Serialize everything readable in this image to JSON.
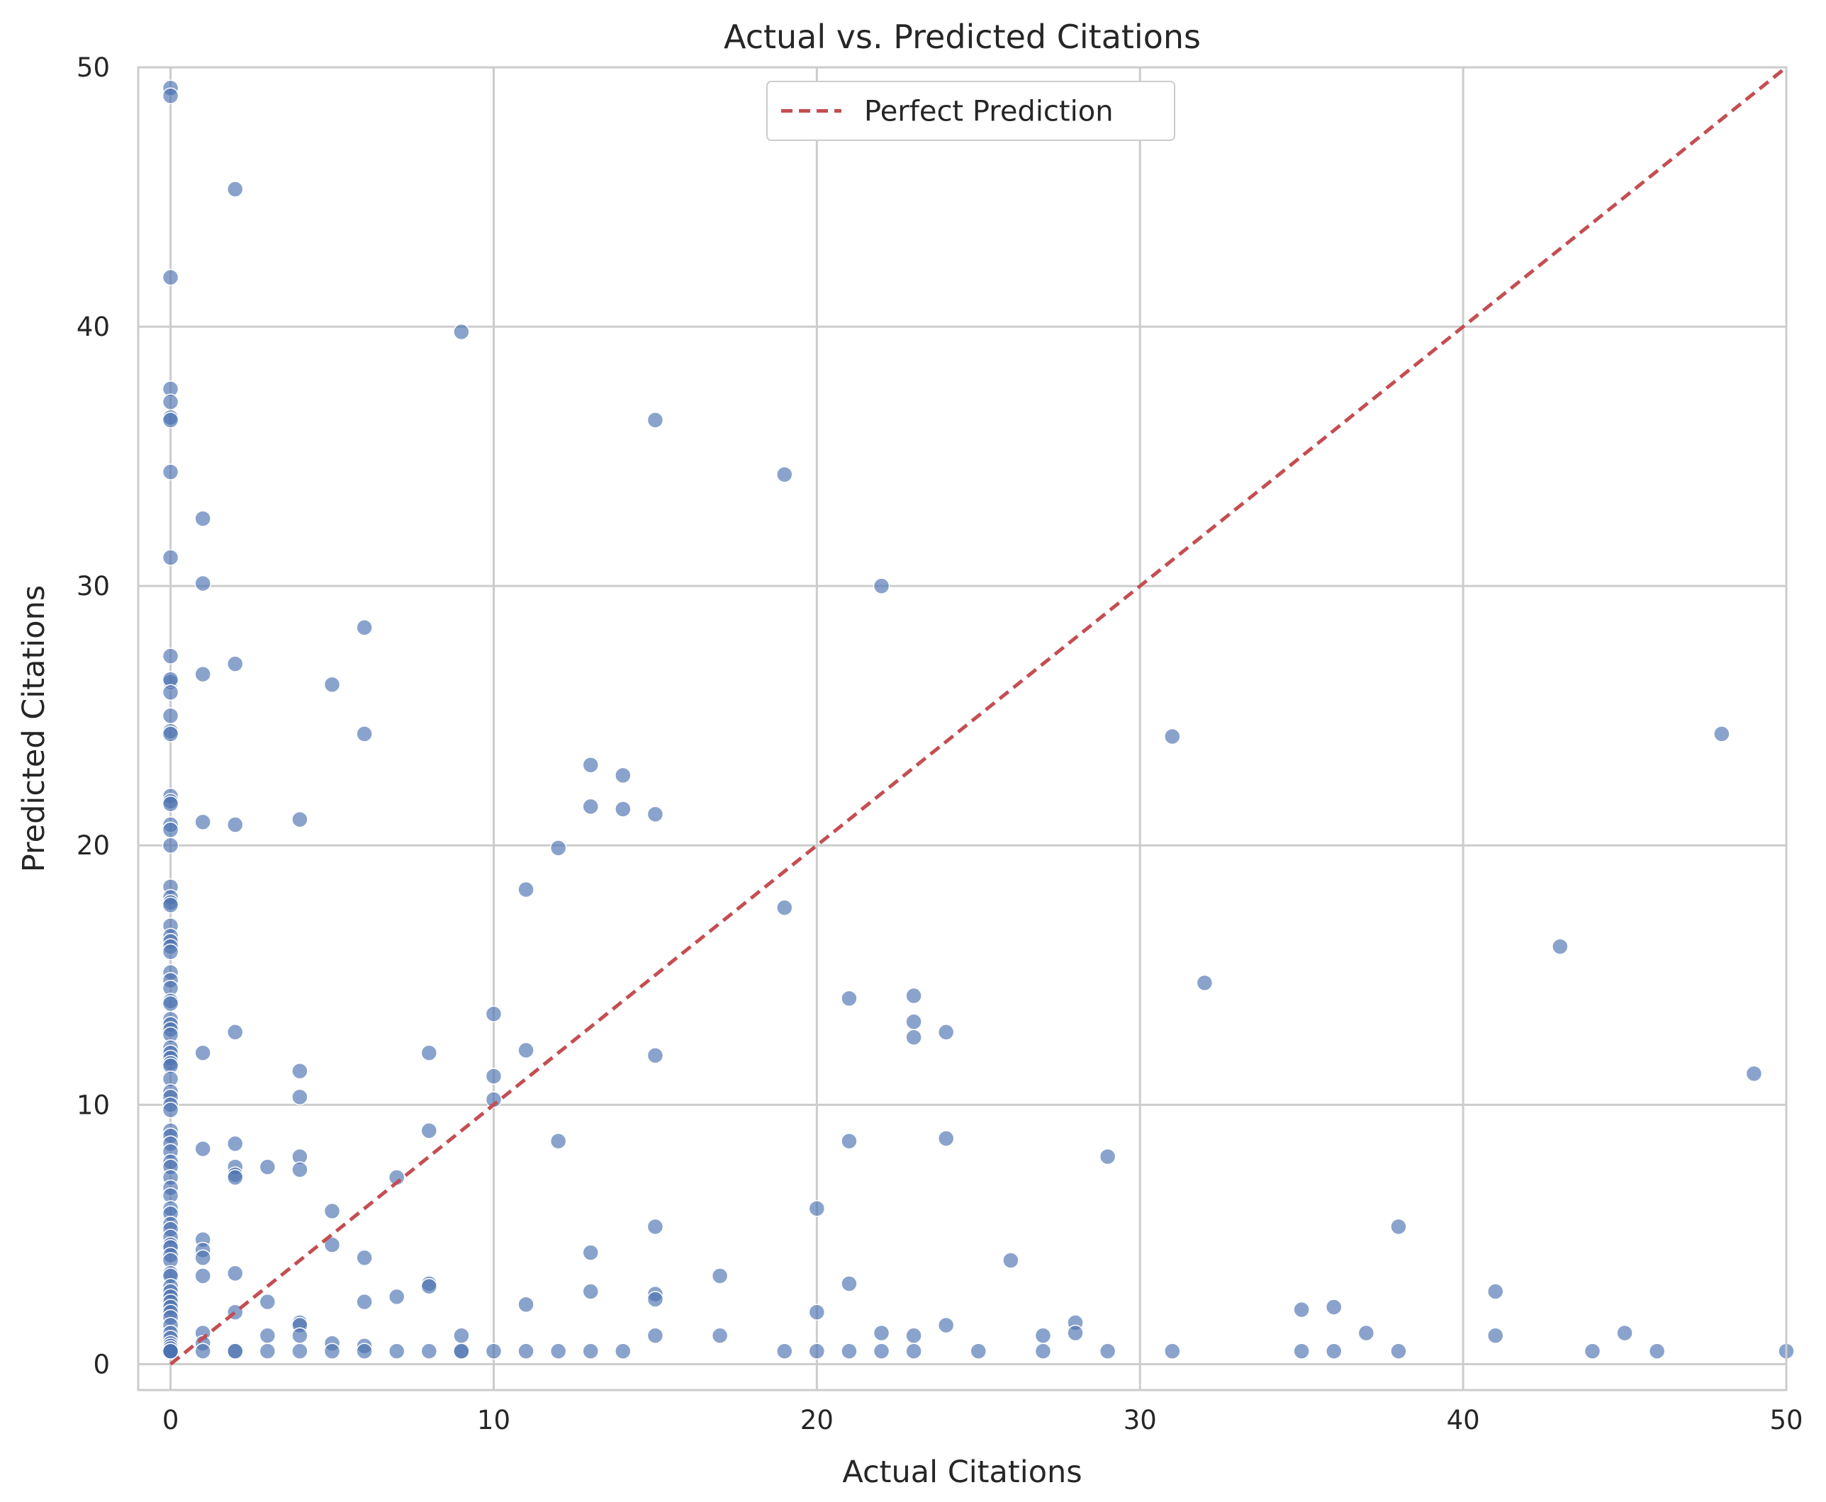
{
  "chart_data": {
    "type": "scatter",
    "title": "Actual vs. Predicted Citations",
    "xlabel": "Actual Citations",
    "ylabel": "Predicted Citations",
    "xlim": [
      -1,
      50
    ],
    "ylim": [
      -1,
      50
    ],
    "xticks": [
      0,
      10,
      20,
      30,
      40,
      50
    ],
    "yticks": [
      0,
      10,
      20,
      30,
      40,
      50
    ],
    "grid": true,
    "legend_position": "top-center",
    "colors": {
      "points": "#4c72b0",
      "reference_line": "#c44e52",
      "grid": "#cccccc",
      "axes": "#cccccc"
    },
    "series": [
      {
        "kind": "points",
        "x": [
          0,
          0,
          0,
          0,
          0,
          0,
          0,
          0,
          0,
          0,
          0,
          0,
          0,
          0,
          0,
          0,
          0,
          0,
          0,
          0,
          0,
          0,
          0,
          0,
          0,
          0,
          0,
          0,
          0,
          0,
          0,
          0,
          0,
          0,
          0,
          0,
          0,
          0,
          0,
          0,
          0,
          0,
          0,
          0,
          0,
          0,
          0,
          0,
          0,
          0,
          0,
          0,
          0,
          0,
          0,
          0,
          0,
          0,
          0,
          0,
          0,
          0,
          0,
          0,
          0,
          0,
          0,
          0,
          0,
          0,
          0,
          0,
          0,
          0,
          0,
          0,
          0,
          0,
          0,
          0,
          0,
          0,
          0,
          0,
          0,
          0,
          0,
          0,
          1,
          1,
          1,
          1,
          1,
          1,
          1,
          1,
          1,
          1,
          1,
          1,
          1,
          2,
          2,
          2,
          2,
          2,
          2,
          2,
          2,
          2,
          2,
          2,
          2,
          3,
          3,
          3,
          3,
          4,
          4,
          4,
          4,
          4,
          4,
          4,
          4,
          4,
          5,
          5,
          5,
          5,
          5,
          6,
          6,
          6,
          6,
          6,
          6,
          7,
          7,
          7,
          8,
          8,
          8,
          8,
          8,
          9,
          9,
          9,
          9,
          10,
          10,
          10,
          10,
          11,
          11,
          11,
          11,
          12,
          12,
          12,
          13,
          13,
          13,
          13,
          13,
          14,
          14,
          14,
          15,
          15,
          15,
          15,
          15,
          15,
          15,
          17,
          17,
          19,
          19,
          19,
          20,
          20,
          20,
          21,
          21,
          21,
          21,
          22,
          22,
          22,
          23,
          23,
          23,
          23,
          23,
          24,
          24,
          24,
          25,
          26,
          27,
          27,
          28,
          28,
          29,
          29,
          31,
          31,
          32,
          35,
          35,
          36,
          36,
          37,
          38,
          38,
          41,
          41,
          43,
          44,
          45,
          46,
          48,
          49,
          50
        ],
        "y": [
          49.2,
          48.9,
          41.9,
          37.6,
          37.1,
          36.5,
          36.4,
          34.4,
          31.1,
          27.3,
          26.3,
          26.4,
          25.9,
          25.0,
          24.4,
          24.3,
          21.9,
          21.7,
          21.6,
          20.8,
          20.6,
          20.0,
          18.4,
          18.0,
          17.8,
          17.7,
          16.9,
          16.5,
          16.3,
          16.1,
          15.9,
          15.1,
          14.8,
          14.5,
          14.0,
          13.9,
          13.3,
          13.1,
          12.9,
          12.7,
          12.2,
          12.0,
          11.8,
          11.6,
          11.5,
          11.0,
          10.5,
          10.3,
          10.0,
          9.8,
          9.0,
          8.8,
          8.5,
          8.2,
          7.8,
          7.6,
          7.2,
          6.8,
          6.5,
          6.0,
          5.8,
          5.4,
          5.2,
          4.9,
          4.6,
          4.5,
          4.2,
          4.0,
          3.5,
          3.4,
          3.0,
          2.8,
          2.6,
          2.4,
          2.2,
          2.0,
          1.8,
          1.5,
          1.2,
          1.0,
          0.8,
          0.7,
          0.6,
          0.5,
          0.5,
          0.5,
          0.5,
          0.5,
          32.6,
          30.1,
          26.6,
          20.9,
          12.0,
          8.3,
          4.8,
          4.4,
          4.1,
          3.4,
          1.2,
          0.8,
          0.5,
          45.3,
          27.0,
          20.8,
          12.8,
          8.5,
          7.6,
          7.3,
          7.2,
          3.5,
          2.0,
          0.5,
          0.5,
          7.6,
          2.4,
          1.1,
          0.5,
          21.0,
          11.3,
          10.3,
          8.0,
          7.5,
          1.6,
          1.5,
          1.1,
          0.5,
          26.2,
          5.9,
          4.6,
          0.8,
          0.5,
          28.4,
          24.3,
          4.1,
          2.4,
          0.7,
          0.5,
          7.2,
          2.6,
          0.5,
          12.0,
          9.0,
          3.1,
          3.0,
          0.5,
          39.8,
          1.1,
          0.5,
          0.5,
          13.5,
          11.1,
          10.2,
          0.5,
          18.3,
          12.1,
          2.3,
          0.5,
          19.9,
          8.6,
          0.5,
          23.1,
          21.5,
          4.3,
          2.8,
          0.5,
          22.7,
          21.4,
          0.5,
          36.4,
          21.2,
          11.9,
          5.3,
          2.7,
          2.5,
          1.1,
          3.4,
          1.1,
          34.3,
          17.6,
          0.5,
          6.0,
          2.0,
          0.5,
          14.1,
          8.6,
          3.1,
          0.5,
          30.0,
          1.2,
          0.5,
          14.2,
          13.2,
          12.6,
          1.1,
          0.5,
          12.8,
          8.7,
          1.5,
          0.5,
          4.0,
          1.1,
          0.5,
          1.6,
          1.2,
          8.0,
          0.5,
          24.2,
          0.5,
          14.7,
          2.1,
          0.5,
          2.2,
          0.5,
          1.2,
          5.3,
          0.5,
          2.8,
          1.1,
          16.1,
          0.5,
          1.2,
          0.5,
          24.3,
          11.2,
          0.5
        ]
      },
      {
        "kind": "reference_line",
        "name": "Perfect Prediction",
        "x": [
          0,
          50
        ],
        "y": [
          0,
          50
        ]
      }
    ]
  }
}
